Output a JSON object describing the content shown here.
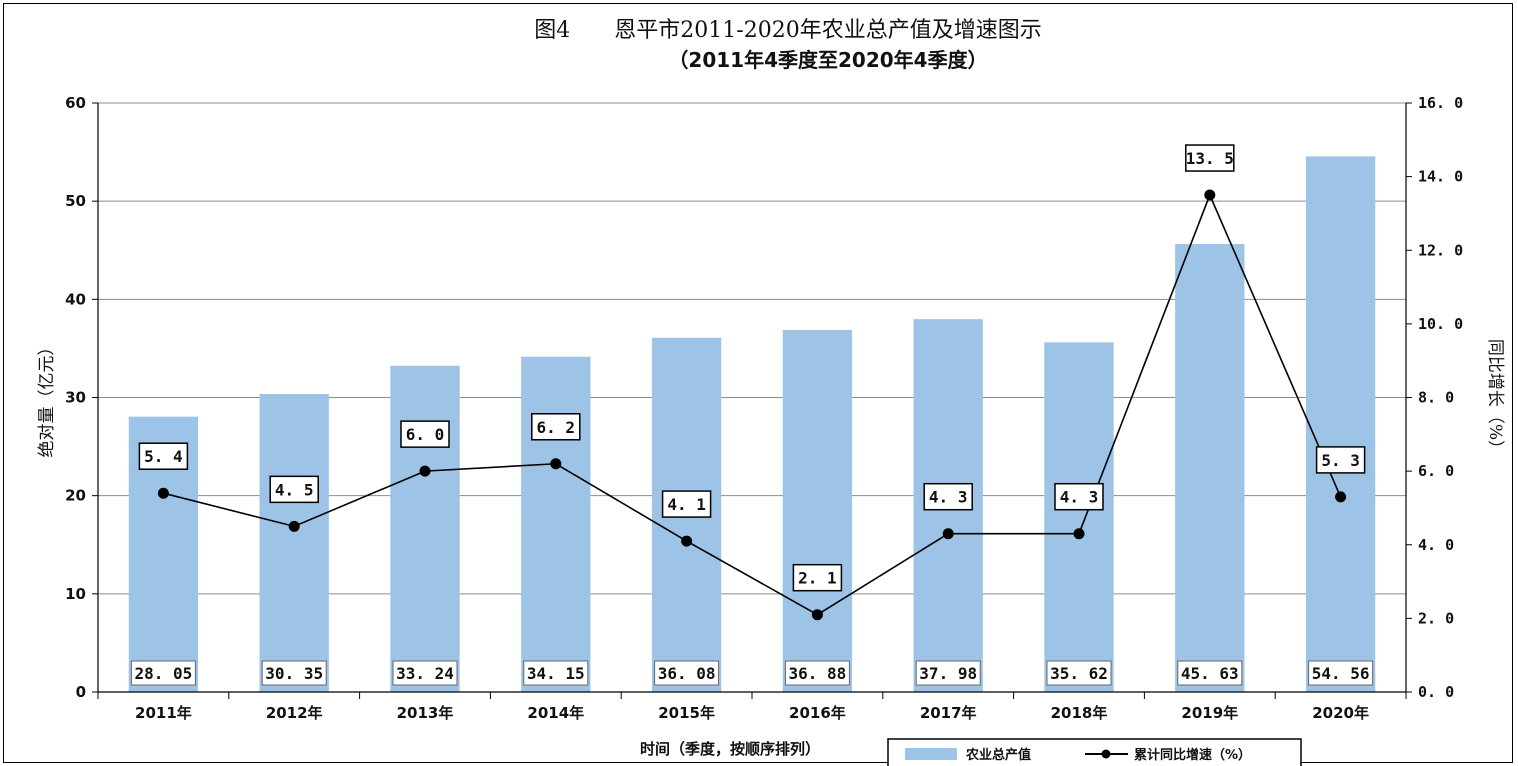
{
  "chart_data": {
    "type": "bar",
    "title": "图4　　恩平市2011-2020年农业总产值及增速图示",
    "subtitle": "（2011年4季度至2020年4季度）",
    "categories": [
      "2011年",
      "2012年",
      "2013年",
      "2014年",
      "2015年",
      "2016年",
      "2017年",
      "2018年",
      "2019年",
      "2020年"
    ],
    "series": [
      {
        "name": "农业总产值",
        "type": "bar",
        "axis": "left",
        "color": "#9dc3e6",
        "values": [
          28.05,
          30.35,
          33.24,
          34.15,
          36.08,
          36.88,
          37.98,
          35.62,
          45.63,
          54.56
        ],
        "labels": [
          "28. 05",
          "30. 35",
          "33. 24",
          "34. 15",
          "36. 08",
          "36. 88",
          "37. 98",
          "35. 62",
          "45. 63",
          "54. 56"
        ]
      },
      {
        "name": "累计同比增速（%）",
        "type": "line",
        "axis": "right",
        "color": "#000000",
        "values": [
          5.4,
          4.5,
          6.0,
          6.2,
          4.1,
          2.1,
          4.3,
          4.3,
          13.5,
          5.3
        ],
        "labels": [
          "5. 4",
          "4. 5",
          "6. 0",
          "6. 2",
          "4. 1",
          "2. 1",
          "4. 3",
          "4. 3",
          "13. 5",
          "5. 3"
        ]
      }
    ],
    "ylabel": "绝对量（亿元）",
    "y2label": "同比增长（%）",
    "xlabel": "时间（季度，按顺序排列）",
    "ylim": [
      0,
      60
    ],
    "y2lim": [
      0,
      16
    ],
    "yticks": [
      "0",
      "10",
      "20",
      "30",
      "40",
      "50",
      "60"
    ],
    "y2ticks": [
      "0. 0",
      "2. 0",
      "4. 0",
      "6. 0",
      "8. 0",
      "10. 0",
      "12. 0",
      "14. 0",
      "16. 0"
    ],
    "grid": true,
    "legend": "bottom-right"
  }
}
